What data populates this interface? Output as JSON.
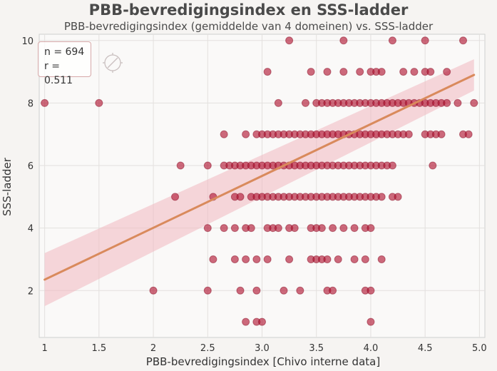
{
  "chart_data": {
    "type": "scatter",
    "title": "PBB-bevredigingsindex en SSS-ladder",
    "subtitle": "PBB-bevredigingsindex (gemiddelde van 4 domeinen) vs. SSS-ladder",
    "xlabel": "PBB-bevredigingsindex [Chivo interne data]",
    "ylabel": "SSS-ladder",
    "xlim": [
      0.95,
      5.05
    ],
    "ylim": [
      0.5,
      10.2
    ],
    "xticks": [
      "1",
      "1.5",
      "2",
      "2.5",
      "3.0",
      "3.5",
      "4.0",
      "4.5",
      "5.0"
    ],
    "yticks": [
      "2",
      "4",
      "6",
      "8",
      "10"
    ],
    "grid": true,
    "stats": {
      "n_label": "n = 694",
      "r_label": "r = 0.511"
    },
    "regression": {
      "x": [
        1.0,
        4.95
      ],
      "y": [
        2.35,
        8.9
      ],
      "ci_low_end": [
        1.5,
        8.4
      ],
      "ci_high_end": [
        3.2,
        9.4
      ]
    },
    "colors": {
      "points": "#b0102e",
      "line": "#d98a5c",
      "band": "#f0b8c0"
    },
    "points": [
      [
        3.25,
        10
      ],
      [
        3.75,
        10
      ],
      [
        4.2,
        10
      ],
      [
        4.5,
        10
      ],
      [
        4.85,
        10
      ],
      [
        3.05,
        9
      ],
      [
        3.45,
        9
      ],
      [
        3.6,
        9
      ],
      [
        3.75,
        9
      ],
      [
        3.9,
        9
      ],
      [
        4.0,
        9
      ],
      [
        4.05,
        9
      ],
      [
        4.1,
        9
      ],
      [
        4.3,
        9
      ],
      [
        4.4,
        9
      ],
      [
        4.5,
        9
      ],
      [
        4.55,
        9
      ],
      [
        4.7,
        9
      ],
      [
        1.0,
        8
      ],
      [
        1.5,
        8
      ],
      [
        3.15,
        8
      ],
      [
        3.4,
        8
      ],
      [
        3.5,
        8
      ],
      [
        3.55,
        8
      ],
      [
        3.6,
        8
      ],
      [
        3.65,
        8
      ],
      [
        3.7,
        8
      ],
      [
        3.75,
        8
      ],
      [
        3.8,
        8
      ],
      [
        3.85,
        8
      ],
      [
        3.9,
        8
      ],
      [
        3.95,
        8
      ],
      [
        4.0,
        8
      ],
      [
        4.05,
        8
      ],
      [
        4.1,
        8
      ],
      [
        4.15,
        8
      ],
      [
        4.2,
        8
      ],
      [
        4.25,
        8
      ],
      [
        4.3,
        8
      ],
      [
        4.35,
        8
      ],
      [
        4.4,
        8
      ],
      [
        4.45,
        8
      ],
      [
        4.5,
        8
      ],
      [
        4.55,
        8
      ],
      [
        4.6,
        8
      ],
      [
        4.65,
        8
      ],
      [
        4.7,
        8
      ],
      [
        4.8,
        8
      ],
      [
        4.95,
        8
      ],
      [
        2.65,
        7
      ],
      [
        2.85,
        7
      ],
      [
        2.95,
        7
      ],
      [
        3.0,
        7
      ],
      [
        3.05,
        7
      ],
      [
        3.1,
        7
      ],
      [
        3.15,
        7
      ],
      [
        3.2,
        7
      ],
      [
        3.25,
        7
      ],
      [
        3.3,
        7
      ],
      [
        3.35,
        7
      ],
      [
        3.4,
        7
      ],
      [
        3.45,
        7
      ],
      [
        3.5,
        7
      ],
      [
        3.55,
        7
      ],
      [
        3.6,
        7
      ],
      [
        3.65,
        7
      ],
      [
        3.7,
        7
      ],
      [
        3.75,
        7
      ],
      [
        3.8,
        7
      ],
      [
        3.85,
        7
      ],
      [
        3.9,
        7
      ],
      [
        3.95,
        7
      ],
      [
        4.0,
        7
      ],
      [
        4.05,
        7
      ],
      [
        4.1,
        7
      ],
      [
        4.15,
        7
      ],
      [
        4.2,
        7
      ],
      [
        4.25,
        7
      ],
      [
        4.3,
        7
      ],
      [
        4.35,
        7
      ],
      [
        4.5,
        7
      ],
      [
        4.55,
        7
      ],
      [
        4.6,
        7
      ],
      [
        4.65,
        7
      ],
      [
        4.85,
        7
      ],
      [
        4.9,
        7
      ],
      [
        2.25,
        6
      ],
      [
        2.5,
        6
      ],
      [
        2.65,
        6
      ],
      [
        2.7,
        6
      ],
      [
        2.75,
        6
      ],
      [
        2.8,
        6
      ],
      [
        2.85,
        6
      ],
      [
        2.9,
        6
      ],
      [
        2.95,
        6
      ],
      [
        3.0,
        6
      ],
      [
        3.05,
        6
      ],
      [
        3.1,
        6
      ],
      [
        3.15,
        6
      ],
      [
        3.2,
        6
      ],
      [
        3.25,
        6
      ],
      [
        3.3,
        6
      ],
      [
        3.35,
        6
      ],
      [
        3.4,
        6
      ],
      [
        3.45,
        6
      ],
      [
        3.5,
        6
      ],
      [
        3.55,
        6
      ],
      [
        3.6,
        6
      ],
      [
        3.65,
        6
      ],
      [
        3.7,
        6
      ],
      [
        3.75,
        6
      ],
      [
        3.8,
        6
      ],
      [
        3.85,
        6
      ],
      [
        3.9,
        6
      ],
      [
        3.95,
        6
      ],
      [
        4.0,
        6
      ],
      [
        4.05,
        6
      ],
      [
        4.1,
        6
      ],
      [
        4.15,
        6
      ],
      [
        4.2,
        6
      ],
      [
        4.57,
        6
      ],
      [
        2.2,
        5
      ],
      [
        2.55,
        5
      ],
      [
        2.75,
        5
      ],
      [
        2.8,
        5
      ],
      [
        2.9,
        5
      ],
      [
        2.95,
        5
      ],
      [
        3.0,
        5
      ],
      [
        3.05,
        5
      ],
      [
        3.1,
        5
      ],
      [
        3.15,
        5
      ],
      [
        3.2,
        5
      ],
      [
        3.25,
        5
      ],
      [
        3.3,
        5
      ],
      [
        3.35,
        5
      ],
      [
        3.4,
        5
      ],
      [
        3.45,
        5
      ],
      [
        3.5,
        5
      ],
      [
        3.55,
        5
      ],
      [
        3.6,
        5
      ],
      [
        3.65,
        5
      ],
      [
        3.7,
        5
      ],
      [
        3.75,
        5
      ],
      [
        3.8,
        5
      ],
      [
        3.85,
        5
      ],
      [
        3.9,
        5
      ],
      [
        3.95,
        5
      ],
      [
        4.0,
        5
      ],
      [
        4.05,
        5
      ],
      [
        4.1,
        5
      ],
      [
        4.2,
        5
      ],
      [
        4.25,
        5
      ],
      [
        2.5,
        4
      ],
      [
        2.65,
        4
      ],
      [
        2.75,
        4
      ],
      [
        2.85,
        4
      ],
      [
        2.9,
        4
      ],
      [
        3.05,
        4
      ],
      [
        3.1,
        4
      ],
      [
        3.15,
        4
      ],
      [
        3.25,
        4
      ],
      [
        3.3,
        4
      ],
      [
        3.45,
        4
      ],
      [
        3.5,
        4
      ],
      [
        3.55,
        4
      ],
      [
        3.65,
        4
      ],
      [
        3.75,
        4
      ],
      [
        3.85,
        4
      ],
      [
        3.95,
        4
      ],
      [
        4.0,
        4
      ],
      [
        2.55,
        3
      ],
      [
        2.75,
        3
      ],
      [
        2.85,
        3
      ],
      [
        2.95,
        3
      ],
      [
        3.05,
        3
      ],
      [
        3.25,
        3
      ],
      [
        3.45,
        3
      ],
      [
        3.5,
        3
      ],
      [
        3.55,
        3
      ],
      [
        3.6,
        3
      ],
      [
        3.7,
        3
      ],
      [
        3.85,
        3
      ],
      [
        3.95,
        3
      ],
      [
        4.1,
        3
      ],
      [
        2.0,
        2
      ],
      [
        2.5,
        2
      ],
      [
        2.8,
        2
      ],
      [
        2.95,
        2
      ],
      [
        3.2,
        2
      ],
      [
        3.35,
        2
      ],
      [
        3.6,
        2
      ],
      [
        3.65,
        2
      ],
      [
        3.95,
        2
      ],
      [
        4.0,
        2
      ],
      [
        2.85,
        1
      ],
      [
        2.95,
        1
      ],
      [
        3.0,
        1
      ],
      [
        4.0,
        1
      ]
    ]
  }
}
